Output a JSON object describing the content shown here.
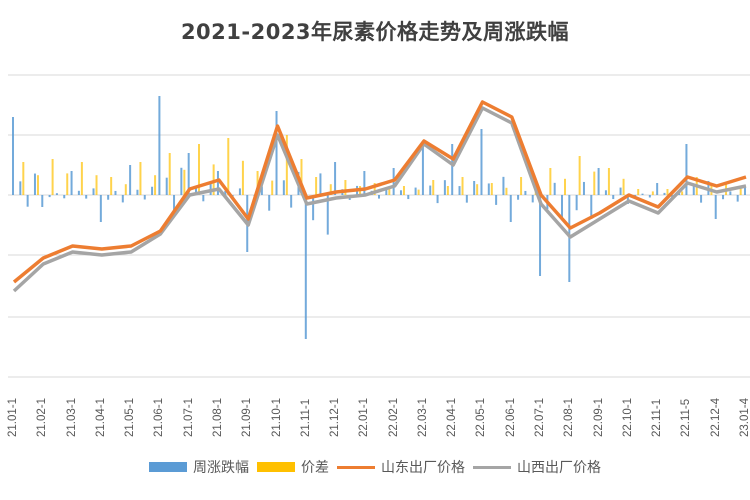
{
  "title": "2021-2023年尿素价格走势及周涨跌幅",
  "legend": {
    "items": [
      {
        "label": "周涨跌幅",
        "type": "bar",
        "color": "#5b9bd5"
      },
      {
        "label": "价差",
        "type": "bar",
        "color": "#ffc000"
      },
      {
        "label": "山东出厂价格",
        "type": "line",
        "color": "#ed7d31"
      },
      {
        "label": "山西出厂价格",
        "type": "line",
        "color": "#a5a5a5"
      }
    ]
  },
  "colors": {
    "bar_change": "#5b9bd5",
    "bar_spread": "#ffc000",
    "line_shandong": "#ed7d31",
    "line_shanxi": "#a5a5a5",
    "grid": "#d9d9d9",
    "text": "#595959"
  },
  "chart_data": {
    "type": "bar",
    "title": "2021-2023年尿素价格走势及周涨跌幅",
    "xlabel": "",
    "ylabel": "",
    "grid": true,
    "legend_position": "bottom",
    "y_axis_labels_visible": false,
    "categories": [
      "21.01-1",
      "21.02-1",
      "21.03-1",
      "21.04-1",
      "21.05-1",
      "21.06-1",
      "21.07-1",
      "21.08-1",
      "21.09-1",
      "21.10-1",
      "21.11-1",
      "21.12-1",
      "22.01-1",
      "22.02-1",
      "22.03-1",
      "22.04-1",
      "22.05-1",
      "22.06-1",
      "22.07-1",
      "22.08-1",
      "22.09-1",
      "22.10-1",
      "22.11-1",
      "22.11-5",
      "22.12-4",
      "23.01-4"
    ],
    "series": [
      {
        "name": "山东出厂价格",
        "type": "line",
        "relative_level": [
          -1.45,
          -1.05,
          -0.85,
          -0.9,
          -0.85,
          -0.6,
          0.1,
          0.25,
          -0.4,
          1.15,
          -0.05,
          0.05,
          0.1,
          0.25,
          0.9,
          0.6,
          1.55,
          1.3,
          0.0,
          -0.55,
          -0.3,
          0.0,
          -0.2,
          0.3,
          0.15,
          0.3
        ]
      },
      {
        "name": "山西出厂价格",
        "type": "line",
        "relative_level": [
          -1.6,
          -1.15,
          -0.95,
          -1.0,
          -0.95,
          -0.65,
          0.0,
          0.1,
          -0.5,
          1.0,
          -0.15,
          -0.05,
          0.0,
          0.15,
          0.85,
          0.5,
          1.45,
          1.2,
          -0.15,
          -0.7,
          -0.4,
          -0.1,
          -0.3,
          0.2,
          0.05,
          0.15
        ]
      },
      {
        "name": "周涨跌幅",
        "type": "bar",
        "relative_level": [
          1.3,
          -0.2,
          0.4,
          -0.45,
          0.5,
          1.65,
          0.7,
          0.4,
          -0.95,
          1.4,
          -2.4,
          0.55,
          0.4,
          0.45,
          0.9,
          0.85,
          1.1,
          -0.45,
          -1.35,
          -1.45,
          0.45,
          -0.15,
          0.2,
          0.85,
          -0.4,
          0.15
        ]
      },
      {
        "name": "价差",
        "type": "bar",
        "relative_level": [
          0.55,
          0.6,
          0.55,
          0.3,
          0.55,
          0.7,
          0.85,
          0.95,
          0.4,
          1.0,
          0.3,
          0.25,
          0.2,
          0.15,
          0.25,
          0.3,
          0.2,
          0.3,
          0.45,
          0.65,
          0.45,
          0.1,
          0.1,
          0.3,
          0.2,
          0.25
        ]
      }
    ]
  }
}
